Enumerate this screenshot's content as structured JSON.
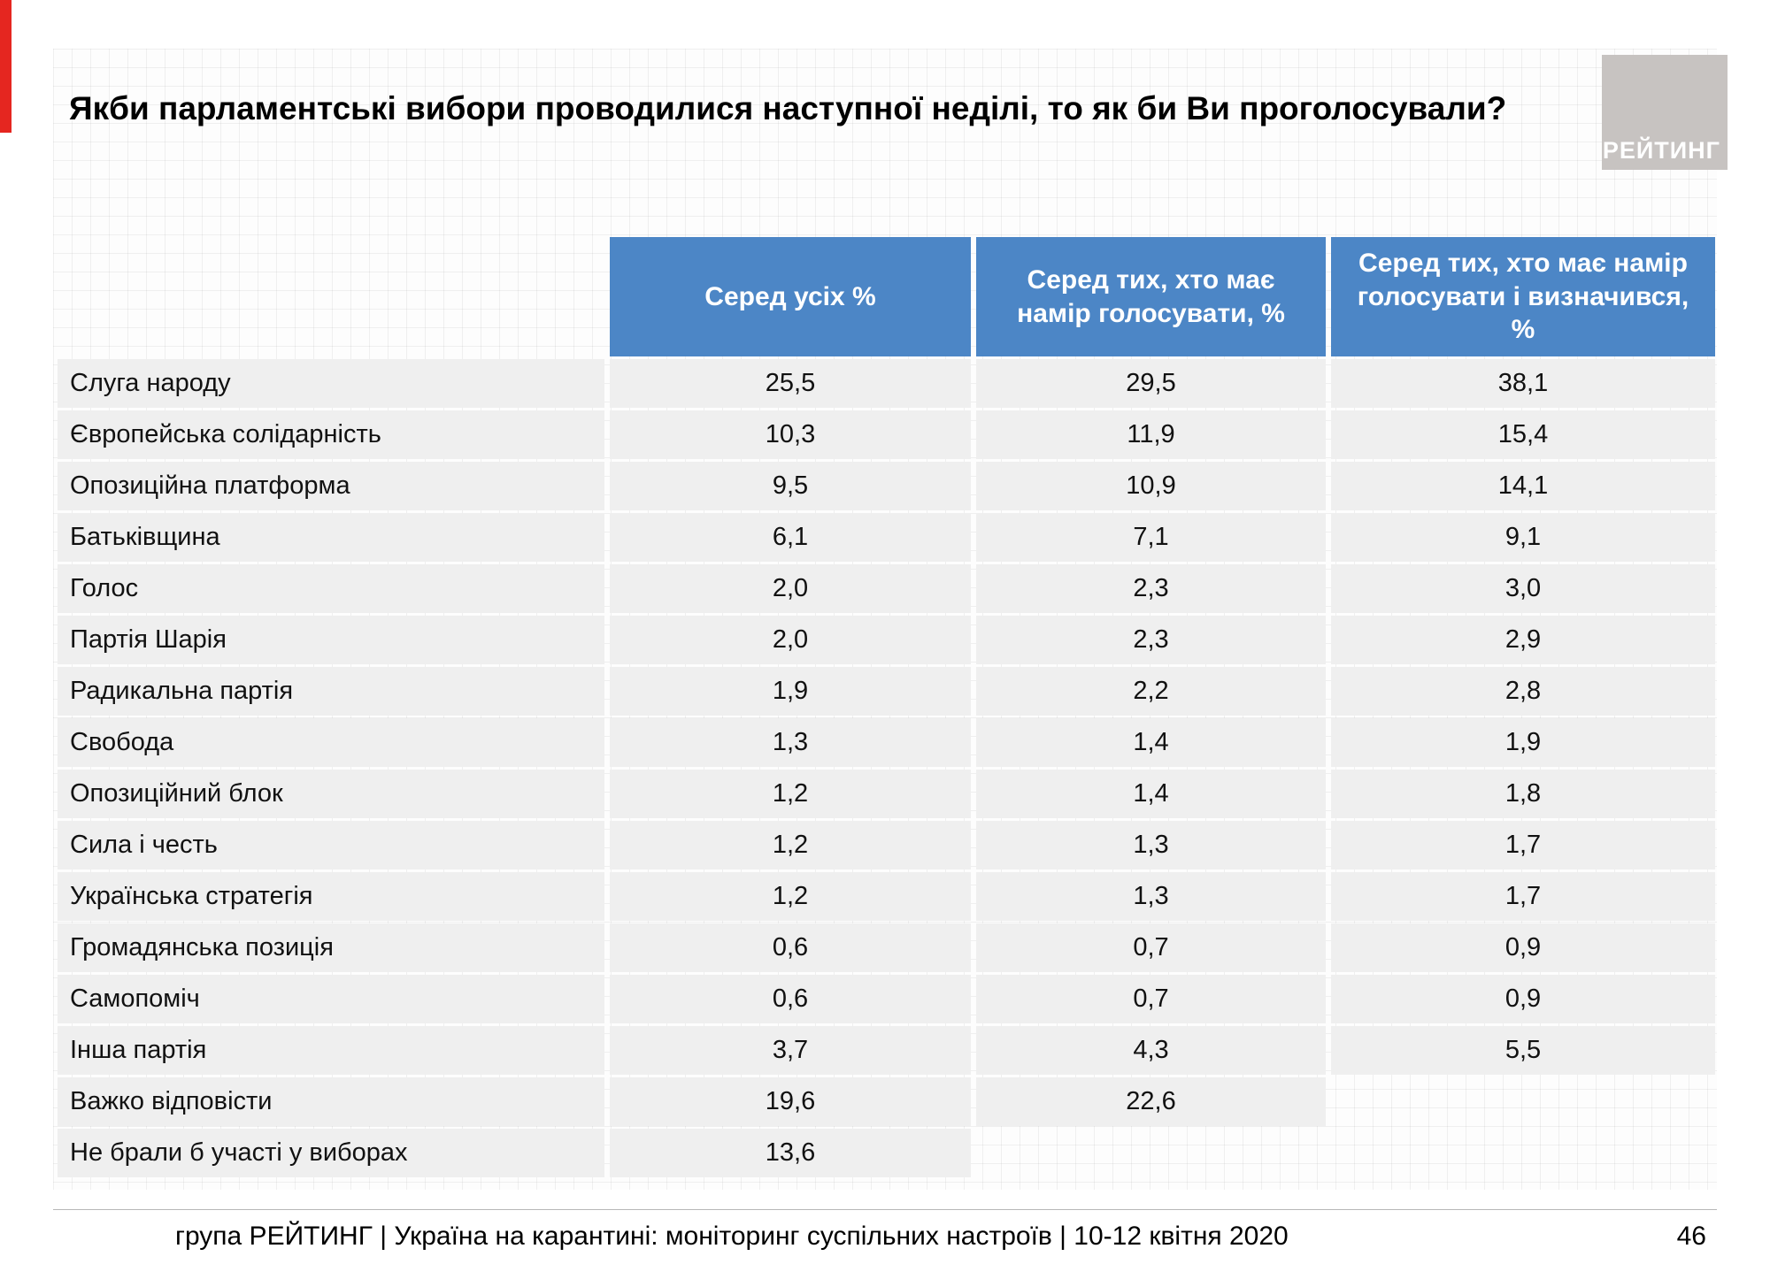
{
  "slide": {
    "title": "Якби парламентські вибори проводилися наступної неділі, то як би Ви проголосували?",
    "logo_text": "РЕЙТИНГ",
    "footer": "група РЕЙТИНГ | Україна на карантині: моніторинг суспільних настроїв | 10-12 квітня 2020",
    "page_number": "46"
  },
  "colors": {
    "header_blue": "#4c86c6",
    "row_gray": "#efefef",
    "accent_red": "#e52620",
    "logo_gray": "#c7c3c1"
  },
  "table": {
    "columns": [
      "Серед усіх %",
      "Серед тих, хто має намір голосувати, %",
      "Серед тих, хто має намір голосувати і визначився, %"
    ],
    "rows": [
      {
        "party": "Слуга народу",
        "all": "25,5",
        "intend": "29,5",
        "decided": "38,1"
      },
      {
        "party": "Європейська солідарність",
        "all": "10,3",
        "intend": "11,9",
        "decided": "15,4"
      },
      {
        "party": "Опозиційна платформа",
        "all": "9,5",
        "intend": "10,9",
        "decided": "14,1"
      },
      {
        "party": "Батьківщина",
        "all": "6,1",
        "intend": "7,1",
        "decided": "9,1"
      },
      {
        "party": "Голос",
        "all": "2,0",
        "intend": "2,3",
        "decided": "3,0"
      },
      {
        "party": "Партія Шарія",
        "all": "2,0",
        "intend": "2,3",
        "decided": "2,9"
      },
      {
        "party": "Радикальна партія",
        "all": "1,9",
        "intend": "2,2",
        "decided": "2,8"
      },
      {
        "party": "Свобода",
        "all": "1,3",
        "intend": "1,4",
        "decided": "1,9"
      },
      {
        "party": "Опозиційний блок",
        "all": "1,2",
        "intend": "1,4",
        "decided": "1,8"
      },
      {
        "party": "Сила і честь",
        "all": "1,2",
        "intend": "1,3",
        "decided": "1,7"
      },
      {
        "party": "Українська стратегія",
        "all": "1,2",
        "intend": "1,3",
        "decided": "1,7"
      },
      {
        "party": "Громадянська позиція",
        "all": "0,6",
        "intend": "0,7",
        "decided": "0,9"
      },
      {
        "party": "Самопоміч",
        "all": "0,6",
        "intend": "0,7",
        "decided": "0,9"
      },
      {
        "party": "Інша партія",
        "all": "3,7",
        "intend": "4,3",
        "decided": "5,5"
      },
      {
        "party": "Важко відповісти",
        "all": "19,6",
        "intend": "22,6",
        "decided": ""
      },
      {
        "party": "Не брали б участі у виборах",
        "all": "13,6",
        "intend": "",
        "decided": ""
      }
    ]
  },
  "chart_data": {
    "type": "table",
    "title": "Якби парламентські вибори проводилися наступної неділі, то як би Ви проголосували?",
    "categories": [
      "Слуга народу",
      "Європейська солідарність",
      "Опозиційна платформа",
      "Батьківщина",
      "Голос",
      "Партія Шарія",
      "Радикальна партія",
      "Свобода",
      "Опозиційний блок",
      "Сила і честь",
      "Українська стратегія",
      "Громадянська позиція",
      "Самопоміч",
      "Інша партія",
      "Важко відповісти",
      "Не брали б участі у виборах"
    ],
    "series": [
      {
        "name": "Серед усіх %",
        "values": [
          25.5,
          10.3,
          9.5,
          6.1,
          2.0,
          2.0,
          1.9,
          1.3,
          1.2,
          1.2,
          1.2,
          0.6,
          0.6,
          3.7,
          19.6,
          13.6
        ]
      },
      {
        "name": "Серед тих, хто має намір голосувати, %",
        "values": [
          29.5,
          11.9,
          10.9,
          7.1,
          2.3,
          2.3,
          2.2,
          1.4,
          1.4,
          1.3,
          1.3,
          0.7,
          0.7,
          4.3,
          22.6,
          null
        ]
      },
      {
        "name": "Серед тих, хто має намір голосувати і визначився, %",
        "values": [
          38.1,
          15.4,
          14.1,
          9.1,
          3.0,
          2.9,
          2.8,
          1.9,
          1.8,
          1.7,
          1.7,
          0.9,
          0.9,
          5.5,
          null,
          null
        ]
      }
    ]
  }
}
